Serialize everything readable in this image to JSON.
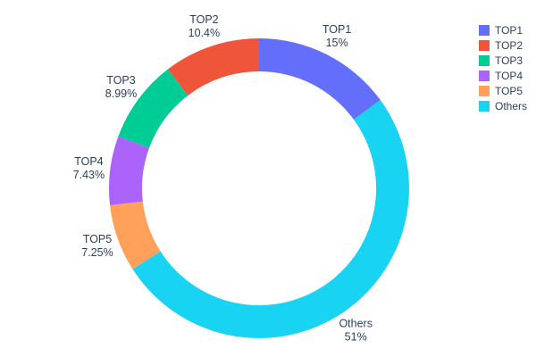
{
  "chart_data": {
    "type": "pie",
    "subtype": "donut",
    "hole": 0.78,
    "title": "",
    "background": "#ffffff",
    "text_color": "#2a3f5f",
    "labels": [
      "TOP1",
      "TOP2",
      "TOP3",
      "TOP4",
      "TOP5",
      "Others"
    ],
    "values": [
      15,
      10.4,
      8.99,
      7.43,
      7.25,
      51
    ],
    "percent_labels": [
      "15%",
      "10.4%",
      "8.99%",
      "7.43%",
      "7.25%",
      "51%"
    ],
    "colors": {
      "TOP1": "#636efa",
      "TOP2": "#ef553b",
      "TOP3": "#00cc96",
      "TOP4": "#ab63fa",
      "TOP5": "#ffa15a",
      "Others": "#19d3f3"
    },
    "clockwise_order_from_top": [
      "TOP1",
      "Others",
      "TOP5",
      "TOP4",
      "TOP3",
      "TOP2"
    ],
    "legend": {
      "position": "top-right",
      "entries": [
        "TOP1",
        "TOP2",
        "TOP3",
        "TOP4",
        "TOP5",
        "Others"
      ]
    }
  }
}
